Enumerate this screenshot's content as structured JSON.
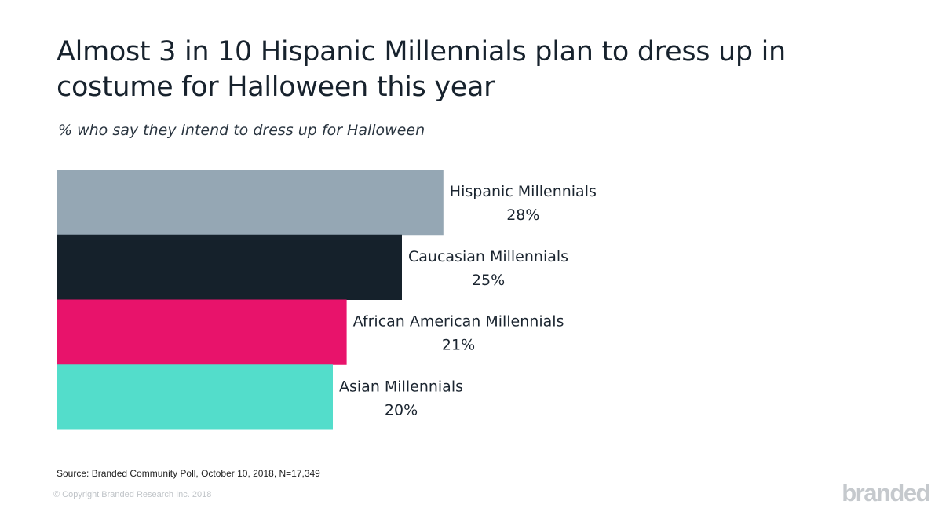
{
  "chart_data": {
    "type": "bar",
    "orientation": "horizontal",
    "title": "Almost 3 in 10 Hispanic Millennials plan to dress up in costume for Halloween this year",
    "subtitle": "% who say they intend to dress up for Halloween",
    "categories": [
      "Hispanic Millennials",
      "Caucasian Millennials",
      "African American Millennials",
      "Asian Millennials"
    ],
    "values": [
      28,
      25,
      21,
      20
    ],
    "value_labels": [
      "28%",
      "25%",
      "21%",
      "20%"
    ],
    "colors": [
      "#95a7b4",
      "#15212b",
      "#e8136b",
      "#53ddcb"
    ],
    "xlim": [
      0,
      40
    ],
    "grid": false,
    "legend": "none"
  },
  "footer": {
    "source": "Source: Branded Community Poll, October 10, 2018, N=17,349",
    "copyright": "© Copyright Branded Research Inc. 2018",
    "logo": "branded"
  }
}
